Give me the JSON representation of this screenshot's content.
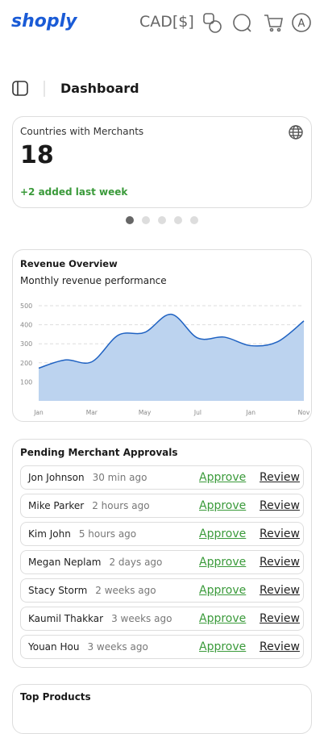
{
  "header": {
    "logo": "shoply",
    "currency": "CAD[$]",
    "avatar": "A"
  },
  "page_title": "Dashboard",
  "stat_card": {
    "label": "Countries with Merchants",
    "value": 18,
    "change": "+2 added last week"
  },
  "chart_data": {
    "type": "area",
    "title": "Revenue Overview",
    "subtitle": "Monthly revenue performance",
    "categories": [
      "Jan",
      null,
      "Mar",
      null,
      "May",
      null,
      "Jul",
      null,
      "Jan",
      null,
      "Nov"
    ],
    "values": [
      172,
      215,
      205,
      345,
      360,
      455,
      330,
      335,
      290,
      310,
      420
    ],
    "color": "#1f62c2",
    "fill": "#bcd3ef",
    "ylim": [
      0,
      500
    ],
    "yticks": [
      100,
      200,
      300,
      400,
      500
    ],
    "grid": true
  },
  "approvals": {
    "title": "Pending Merchant Approvals",
    "rows": [
      {
        "name": "Jon Johnson",
        "time": "30 min ago",
        "approve": "Approve",
        "review": "Review"
      },
      {
        "name": "Mike Parker",
        "time": "2 hours ago",
        "approve": "Approve",
        "review": "Review"
      },
      {
        "name": "Kim John",
        "time": "5 hours ago",
        "approve": "Approve",
        "review": "Review"
      },
      {
        "name": "Megan Neplam",
        "time": "2 days ago",
        "approve": "Approve",
        "review": "Review"
      },
      {
        "name": "Stacy Storm",
        "time": "2 weeks ago",
        "approve": "Approve",
        "review": "Review"
      },
      {
        "name": "Kaumil Thakkar",
        "time": "3 weeks ago",
        "approve": "Approve",
        "review": "Review"
      },
      {
        "name": "Youan Hou",
        "time": "3 weeks ago",
        "approve": "Approve",
        "review": "Review"
      }
    ]
  },
  "top_products": {
    "title": "Top Products"
  }
}
